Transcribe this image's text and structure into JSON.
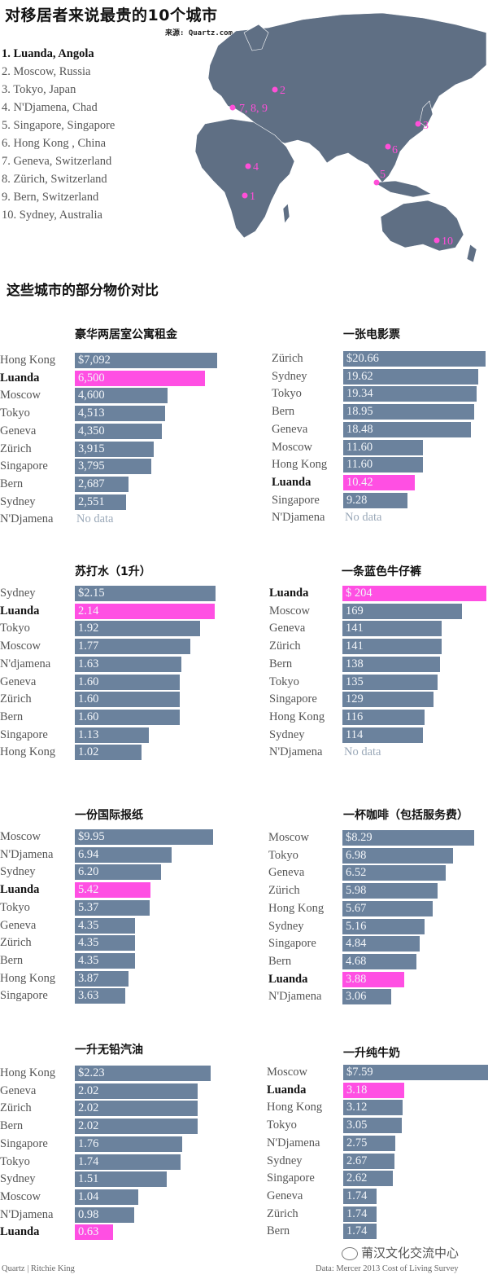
{
  "header": {
    "title": "对移居者来说最贵的10个城市",
    "source": "来源: Quartz.com",
    "subtitle": "这些城市的部分物价对比"
  },
  "ranking": [
    "1. Luanda, Angola",
    "2. Moscow, Russia",
    "3. Tokyo, Japan",
    "4. N'Djamena, Chad",
    "5. Singapore, Singapore",
    "6. Hong Kong , China",
    "7. Geneva, Switzerland",
    "8. Zürich, Switzerland",
    "9. Bern, Switzerland",
    "10. Sydney, Australia"
  ],
  "map": {
    "land_color": "#5f6f84",
    "marker_color": "#ff4fd8",
    "markers": [
      "1",
      "2",
      "3",
      "4",
      "5",
      "6",
      "7, 8, 9",
      "10"
    ]
  },
  "colors": {
    "bar": "#6b829d",
    "highlight": "#ff4fe3",
    "nodata": "#9aa8b8"
  },
  "chart_data": [
    {
      "type": "bar",
      "title": "豪华两居室公寓租金",
      "categories": [
        "Hong Kong",
        "Luanda",
        "Moscow",
        "Tokyo",
        "Geneva",
        "Zürich",
        "Singapore",
        "Bern",
        "Sydney",
        "N'Djamena"
      ],
      "values": [
        7092,
        6500,
        4600,
        4513,
        4350,
        3915,
        3795,
        2687,
        2551,
        null
      ],
      "labels": [
        "$7,092",
        "6,500",
        "4,600",
        "4,513",
        "4,350",
        "3,915",
        "3,795",
        "2,687",
        "2,551",
        "No data"
      ],
      "highlight": "Luanda"
    },
    {
      "type": "bar",
      "title": "一张电影票",
      "categories": [
        "Zürich",
        "Sydney",
        "Tokyo",
        "Bern",
        "Geneva",
        "Moscow",
        "Hong Kong",
        "Luanda",
        "Singapore",
        "N'Djamena"
      ],
      "values": [
        20.66,
        19.62,
        19.34,
        18.95,
        18.48,
        11.6,
        11.6,
        10.42,
        9.28,
        null
      ],
      "labels": [
        "$20.66",
        "19.62",
        "19.34",
        "18.95",
        "18.48",
        "11.60",
        "11.60",
        "10.42",
        "9.28",
        "No data"
      ],
      "highlight": "Luanda"
    },
    {
      "type": "bar",
      "title": "苏打水（1升）",
      "categories": [
        "Sydney",
        "Luanda",
        "Tokyo",
        "Moscow",
        "N'djamena",
        "Geneva",
        "Zürich",
        "Bern",
        "Singapore",
        "Hong Kong"
      ],
      "values": [
        2.15,
        2.14,
        1.92,
        1.77,
        1.63,
        1.6,
        1.6,
        1.6,
        1.13,
        1.02
      ],
      "labels": [
        "$2.15",
        "2.14",
        "1.92",
        "1.77",
        "1.63",
        "1.60",
        "1.60",
        "1.60",
        "1.13",
        "1.02"
      ],
      "highlight": "Luanda"
    },
    {
      "type": "bar",
      "title": "一条蓝色牛仔裤",
      "categories": [
        "Luanda",
        "Moscow",
        "Geneva",
        "Zürich",
        "Bern",
        "Tokyo",
        "Singapore",
        "Hong Kong",
        "Sydney",
        "N'Djamena"
      ],
      "values": [
        204,
        169,
        141,
        141,
        138,
        135,
        129,
        116,
        114,
        null
      ],
      "labels": [
        "$ 204",
        "169",
        "141",
        "141",
        "138",
        "135",
        "129",
        "116",
        "114",
        "No data"
      ],
      "highlight": "Luanda"
    },
    {
      "type": "bar",
      "title": "一份国际报纸",
      "categories": [
        "Moscow",
        "N'Djamena",
        "Sydney",
        "Luanda",
        "Tokyo",
        "Geneva",
        "Zürich",
        "Bern",
        "Hong Kong",
        "Singapore"
      ],
      "values": [
        9.95,
        6.94,
        6.2,
        5.42,
        5.37,
        4.35,
        4.35,
        4.35,
        3.87,
        3.63
      ],
      "labels": [
        "$9.95",
        "6.94",
        "6.20",
        "5.42",
        "5.37",
        "4.35",
        "4.35",
        "4.35",
        "3.87",
        "3.63"
      ],
      "highlight": "Luanda"
    },
    {
      "type": "bar",
      "title": "一杯咖啡（包括服务费）",
      "categories": [
        "Moscow",
        "Tokyo",
        "Geneva",
        "Zürich",
        "Hong Kong",
        "Sydney",
        "Singapore",
        "Bern",
        "Luanda",
        "N'Djamena"
      ],
      "values": [
        8.29,
        6.98,
        6.52,
        5.98,
        5.67,
        5.16,
        4.84,
        4.68,
        3.88,
        3.06
      ],
      "labels": [
        "$8.29",
        "6.98",
        "6.52",
        "5.98",
        "5.67",
        "5.16",
        "4.84",
        "4.68",
        "3.88",
        "3.06"
      ],
      "highlight": "Luanda"
    },
    {
      "type": "bar",
      "title": "一升无铅汽油",
      "categories": [
        "Hong Kong",
        "Geneva",
        "Zürich",
        "Bern",
        "Singapore",
        "Tokyo",
        "Sydney",
        "Moscow",
        "N'Djamena",
        "Luanda"
      ],
      "values": [
        2.23,
        2.02,
        2.02,
        2.02,
        1.76,
        1.74,
        1.51,
        1.04,
        0.98,
        0.63
      ],
      "labels": [
        "$2.23",
        "2.02",
        "2.02",
        "2.02",
        "1.76",
        "1.74",
        "1.51",
        "1.04",
        "0.98",
        "0.63"
      ],
      "highlight": "Luanda"
    },
    {
      "type": "bar",
      "title": "一升纯牛奶",
      "categories": [
        "Moscow",
        "Luanda",
        "Hong Kong",
        "Tokyo",
        "N'Djamena",
        "Sydney",
        "Singapore",
        "Geneva",
        "Zürich",
        "Bern"
      ],
      "values": [
        7.59,
        3.18,
        3.12,
        3.05,
        2.75,
        2.67,
        2.62,
        1.74,
        1.74,
        1.74
      ],
      "labels": [
        "$7.59",
        "3.18",
        "3.12",
        "3.05",
        "2.75",
        "2.67",
        "2.62",
        "1.74",
        "1.74",
        "1.74"
      ],
      "highlight": "Luanda"
    }
  ],
  "footer": {
    "credit": "Quartz | Ritchie King",
    "data_source": "Data: Mercer 2013 Cost of Living Survey",
    "watermark": "莆汉文化交流中心"
  }
}
